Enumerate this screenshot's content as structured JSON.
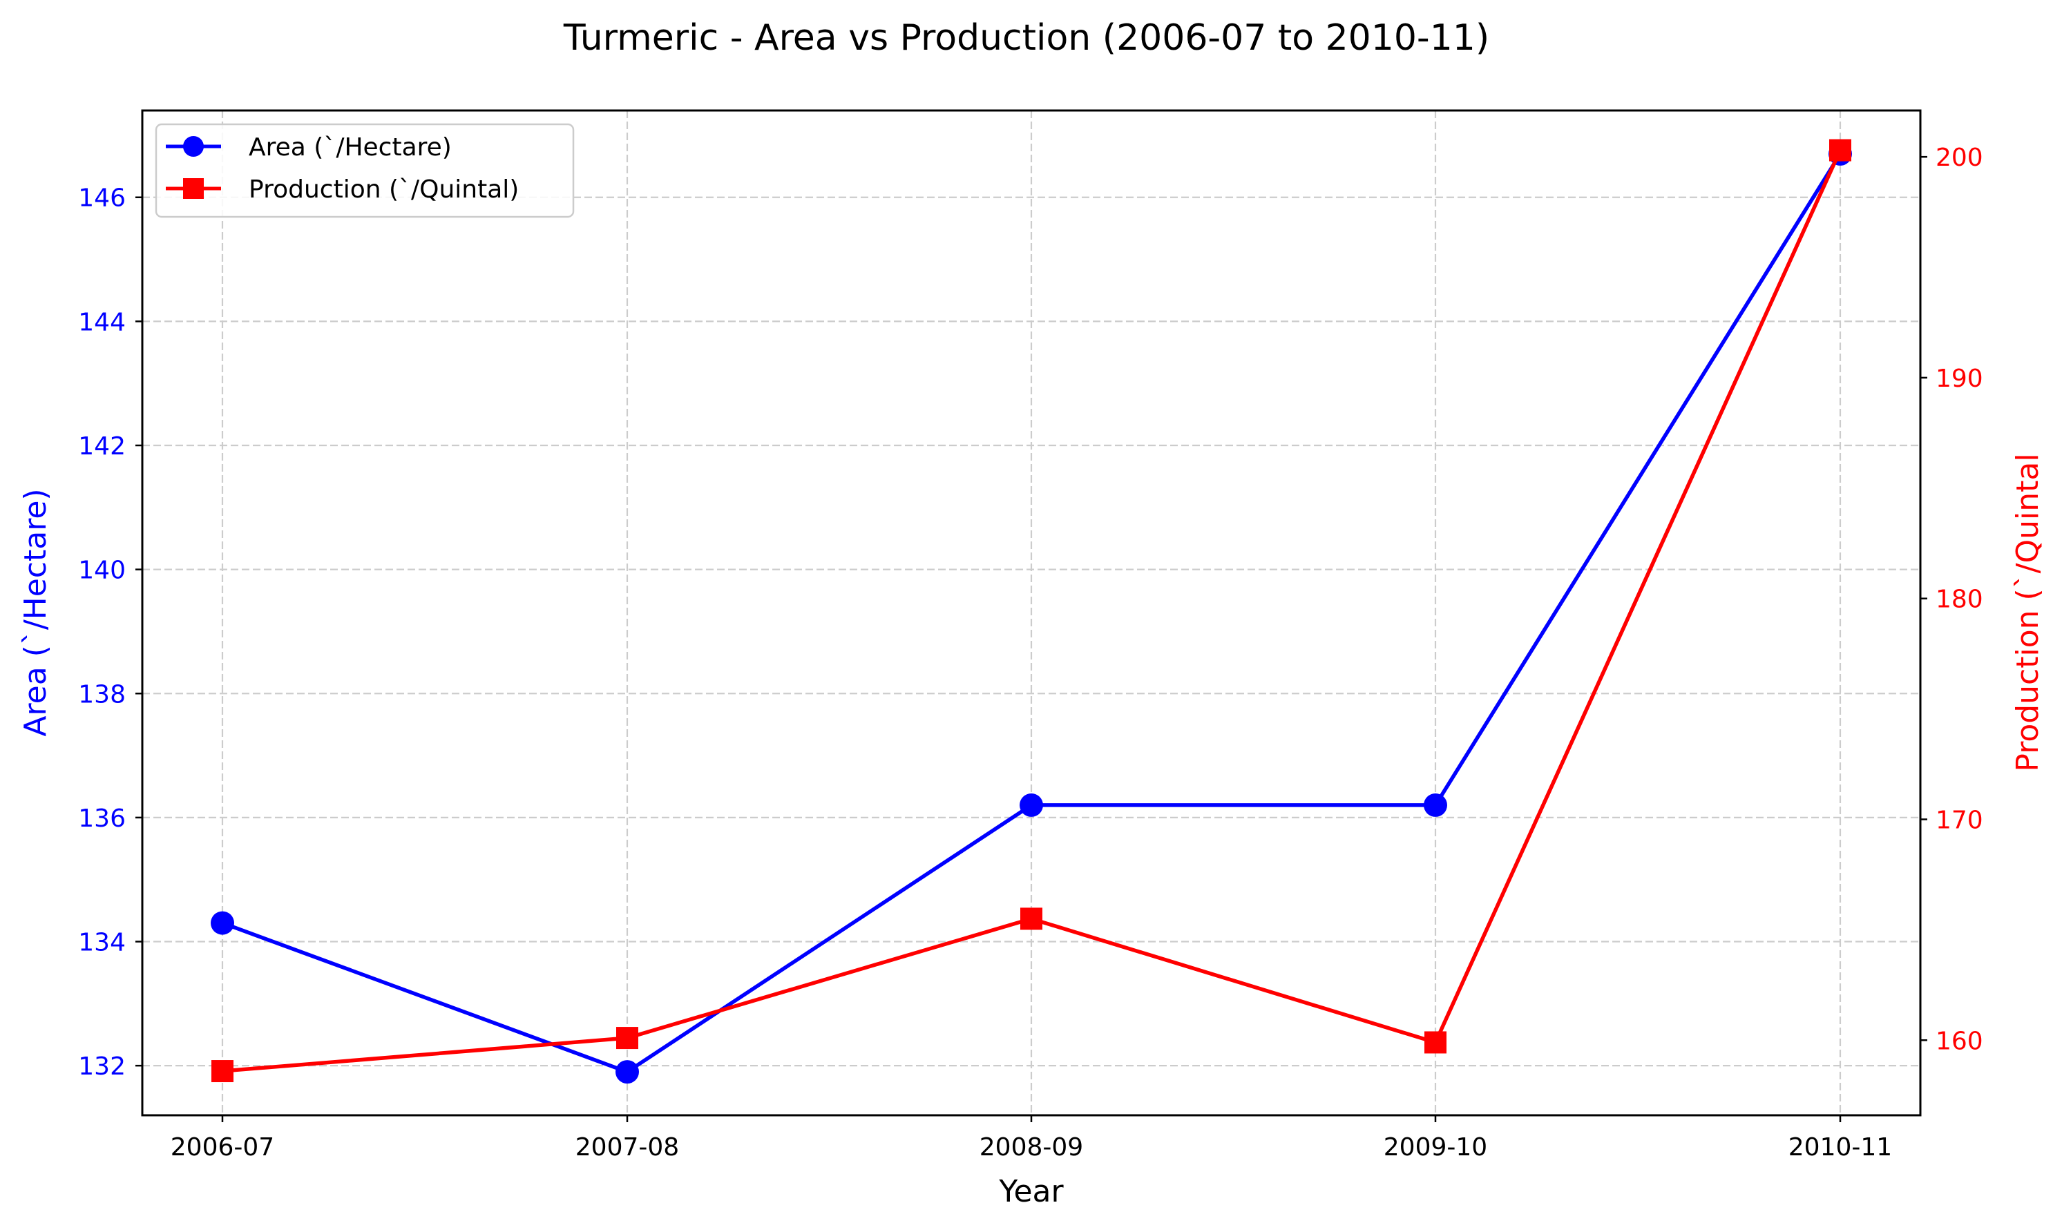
{
  "chart_data": {
    "type": "line",
    "title": "Turmeric  - Area vs Production (2006-07 to 2010-11)",
    "xlabel": "Year",
    "categories": [
      "2006-07",
      "2007-08",
      "2008-09",
      "2009-10",
      "2010-11"
    ],
    "grid": true,
    "legend_position": "top-left",
    "axes": {
      "left": {
        "label": "Area (`/Hectare)",
        "ylim": [
          131.2,
          147.4
        ],
        "ticks": [
          132,
          134,
          136,
          138,
          140,
          142,
          144,
          146
        ],
        "color": "#0000ff"
      },
      "right": {
        "label": "Production (`/Quintal",
        "ylim": [
          156.6,
          202.1
        ],
        "ticks": [
          160,
          170,
          180,
          190,
          200
        ],
        "color": "#ff0000"
      }
    },
    "series": [
      {
        "name": "Area (`/Hectare)",
        "axis": "left",
        "marker": "circle",
        "color": "#0000ff",
        "values": [
          134.3,
          131.9,
          136.2,
          136.2,
          146.7
        ]
      },
      {
        "name": "Production (`/Quintal)",
        "axis": "right",
        "marker": "square",
        "color": "#ff0000",
        "values": [
          158.6,
          160.1,
          165.5,
          159.9,
          200.3
        ]
      }
    ]
  }
}
